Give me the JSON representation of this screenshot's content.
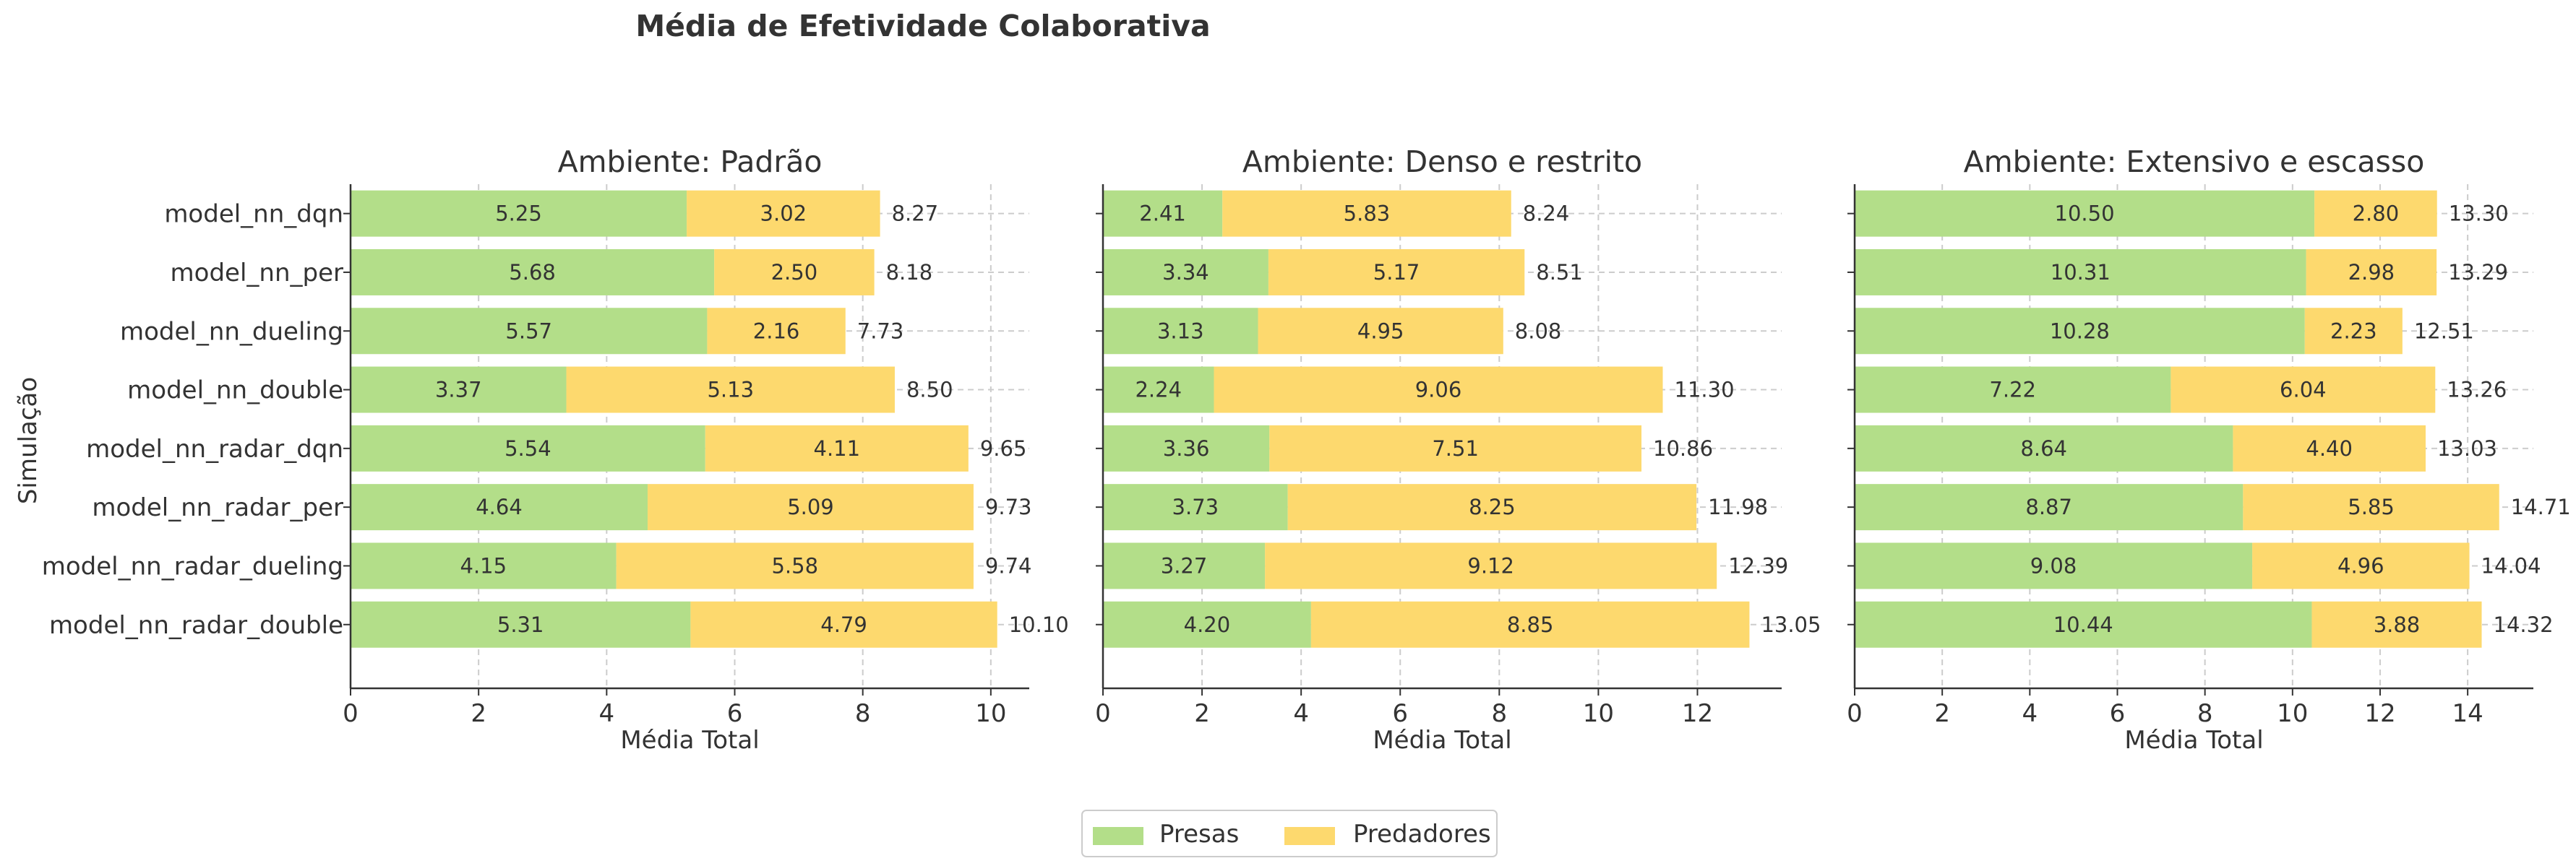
{
  "figure": {
    "title": "Média de Efetividade Colaborativa",
    "ylabel": "Simulação",
    "colors": {
      "presas": "#b3de89",
      "predadores": "#fdd96e",
      "grid": "#cccccc",
      "axis": "#333333",
      "text": "#333333"
    }
  },
  "legend": {
    "placement": "bottom-center",
    "entries": [
      "Presas",
      "Predadores"
    ]
  },
  "chart_data": [
    {
      "type": "bar",
      "orientation": "horizontal",
      "stacked": true,
      "title": "Ambiente: Padrão",
      "xlabel": "Média Total",
      "ylabel": "Simulação",
      "xlim": [
        0,
        10.6
      ],
      "xticks": [
        0,
        2,
        4,
        6,
        8,
        10
      ],
      "grid": true,
      "categories": [
        "model_nn_dqn",
        "model_nn_per",
        "model_nn_dueling",
        "model_nn_double",
        "model_nn_radar_dqn",
        "model_nn_radar_per",
        "model_nn_radar_dueling",
        "model_nn_radar_double"
      ],
      "series": [
        {
          "name": "Presas",
          "values": [
            5.25,
            5.68,
            5.57,
            3.37,
            5.54,
            4.64,
            4.15,
            5.31
          ],
          "labels": [
            "5.25",
            "5.68",
            "5.57",
            "3.37",
            "5.54",
            "4.64",
            "4.15",
            "5.31"
          ]
        },
        {
          "name": "Predadores",
          "values": [
            3.02,
            2.5,
            2.16,
            5.13,
            4.11,
            5.09,
            5.58,
            4.79
          ],
          "labels": [
            "3.02",
            "2.50",
            "2.16",
            "5.13",
            "4.11",
            "5.09",
            "5.58",
            "4.79"
          ]
        }
      ],
      "totals": [
        8.27,
        8.18,
        7.73,
        8.5,
        9.65,
        9.73,
        9.74,
        10.1
      ],
      "total_labels": [
        "8.27",
        "8.18",
        "7.73",
        "8.50",
        "9.65",
        "9.73",
        "9.74",
        "10.10"
      ]
    },
    {
      "type": "bar",
      "orientation": "horizontal",
      "stacked": true,
      "title": "Ambiente: Denso e restrito",
      "xlabel": "Média Total",
      "xlim": [
        0,
        13.7
      ],
      "xticks": [
        0,
        2,
        4,
        6,
        8,
        10,
        12
      ],
      "grid": true,
      "categories": [
        "model_nn_dqn",
        "model_nn_per",
        "model_nn_dueling",
        "model_nn_double",
        "model_nn_radar_dqn",
        "model_nn_radar_per",
        "model_nn_radar_dueling",
        "model_nn_radar_double"
      ],
      "series": [
        {
          "name": "Presas",
          "values": [
            2.41,
            3.34,
            3.13,
            2.24,
            3.36,
            3.73,
            3.27,
            4.2
          ],
          "labels": [
            "2.41",
            "3.34",
            "3.13",
            "2.24",
            "3.36",
            "3.73",
            "3.27",
            "4.20"
          ]
        },
        {
          "name": "Predadores",
          "values": [
            5.83,
            5.17,
            4.95,
            9.06,
            7.51,
            8.25,
            9.12,
            8.85
          ],
          "labels": [
            "5.83",
            "5.17",
            "4.95",
            "9.06",
            "7.51",
            "8.25",
            "9.12",
            "8.85"
          ]
        }
      ],
      "totals": [
        8.24,
        8.51,
        8.08,
        11.3,
        10.86,
        11.98,
        12.39,
        13.05
      ],
      "total_labels": [
        "8.24",
        "8.51",
        "8.08",
        "11.30",
        "10.86",
        "11.98",
        "12.39",
        "13.05"
      ]
    },
    {
      "type": "bar",
      "orientation": "horizontal",
      "stacked": true,
      "title": "Ambiente: Extensivo e escasso",
      "xlabel": "Média Total",
      "xlim": [
        0,
        15.5
      ],
      "xticks": [
        0,
        2,
        4,
        6,
        8,
        10,
        12,
        14
      ],
      "grid": true,
      "categories": [
        "model_nn_dqn",
        "model_nn_per",
        "model_nn_dueling",
        "model_nn_double",
        "model_nn_radar_dqn",
        "model_nn_radar_per",
        "model_nn_radar_dueling",
        "model_nn_radar_double"
      ],
      "series": [
        {
          "name": "Presas",
          "values": [
            10.5,
            10.31,
            10.28,
            7.22,
            8.64,
            8.87,
            9.08,
            10.44
          ],
          "labels": [
            "10.50",
            "10.31",
            "10.28",
            "7.22",
            "8.64",
            "8.87",
            "9.08",
            "10.44"
          ]
        },
        {
          "name": "Predadores",
          "values": [
            2.8,
            2.98,
            2.23,
            6.04,
            4.4,
            5.85,
            4.96,
            3.88
          ],
          "labels": [
            "2.80",
            "2.98",
            "2.23",
            "6.04",
            "4.40",
            "5.85",
            "4.96",
            "3.88"
          ]
        }
      ],
      "totals": [
        13.3,
        13.29,
        12.51,
        13.26,
        13.03,
        14.71,
        14.04,
        14.32
      ],
      "total_labels": [
        "13.30",
        "13.29",
        "12.51",
        "13.26",
        "13.03",
        "14.71",
        "14.04",
        "14.32"
      ]
    }
  ]
}
